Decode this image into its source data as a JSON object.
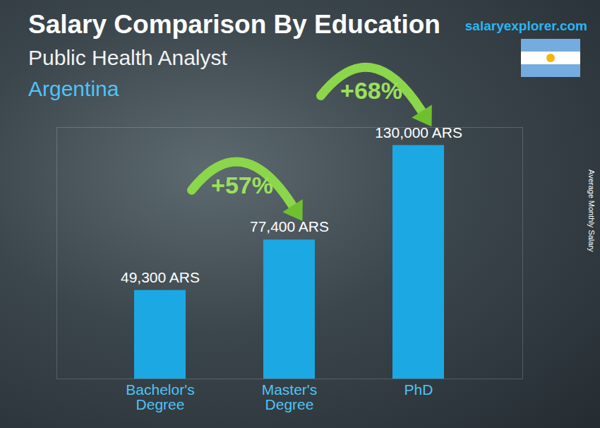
{
  "chart_data": {
    "type": "bar",
    "title": "Salary Comparison By Education",
    "subtitle": "Public Health Analyst",
    "location": "Argentina",
    "source": "salaryexplorer.com",
    "ylabel": "Average Monthly Salary",
    "categories": [
      "Bachelor's Degree",
      "Master's Degree",
      "PhD"
    ],
    "values": [
      49300,
      77400,
      130000
    ],
    "value_labels": [
      "49,300 ARS",
      "77,400 ARS",
      "130,000 ARS"
    ],
    "data_labels": true,
    "color": "#1ba8e3",
    "ylim": [
      0,
      140000
    ],
    "yticks": [],
    "tick_labels": "x",
    "grid": false,
    "annotations": [
      {
        "text": "+57%",
        "from": "Bachelor's Degree",
        "to": "Master's Degree"
      },
      {
        "text": "+68%",
        "from": "Master's Degree",
        "to": "PhD"
      }
    ]
  }
}
